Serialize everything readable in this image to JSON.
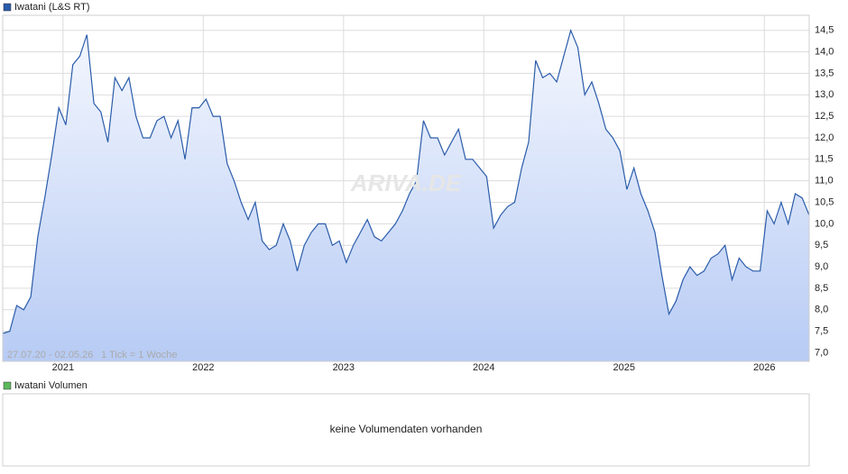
{
  "chart_data": {
    "type": "area",
    "title": "Iwatani (L&S RT)",
    "range_note": "27.07.20 - 02.05.26",
    "tick_note": "1 Tick = 1 Woche",
    "watermark": "ARIVA.DE",
    "volume_title": "Iwatani Volumen",
    "volume_note": "keine Volumendaten vorhanden",
    "grid": true,
    "color": "#2a5caa",
    "volume_color": "#5cb85c",
    "xlim": [
      2020.57,
      2026.32
    ],
    "xticks": [
      2021,
      2022,
      2023,
      2024,
      2025,
      2026
    ],
    "ylim": [
      6.8,
      14.85
    ],
    "yticks": [
      {
        "value": 7.0,
        "label": "7,0"
      },
      {
        "value": 7.5,
        "label": "7,5"
      },
      {
        "value": 8.0,
        "label": "8,0"
      },
      {
        "value": 8.5,
        "label": "8,5"
      },
      {
        "value": 9.0,
        "label": "9,0"
      },
      {
        "value": 9.5,
        "label": "9,5"
      },
      {
        "value": 10.0,
        "label": "10,0"
      },
      {
        "value": 10.5,
        "label": "10,5"
      },
      {
        "value": 11.0,
        "label": "11,0"
      },
      {
        "value": 11.5,
        "label": "11,5"
      },
      {
        "value": 12.0,
        "label": "12,0"
      },
      {
        "value": 12.5,
        "label": "12,5"
      },
      {
        "value": 13.0,
        "label": "13,0"
      },
      {
        "value": 13.5,
        "label": "13,5"
      },
      {
        "value": 14.0,
        "label": "14,0"
      },
      {
        "value": 14.5,
        "label": "14,5"
      }
    ],
    "x": [
      2020.57,
      2020.62,
      2020.67,
      2020.72,
      2020.77,
      2020.82,
      2020.87,
      2020.92,
      2020.97,
      2021.02,
      2021.07,
      2021.12,
      2021.17,
      2021.22,
      2021.27,
      2021.32,
      2021.37,
      2021.42,
      2021.47,
      2021.52,
      2021.57,
      2021.62,
      2021.67,
      2021.72,
      2021.77,
      2021.82,
      2021.87,
      2021.92,
      2021.97,
      2022.02,
      2022.07,
      2022.12,
      2022.17,
      2022.22,
      2022.27,
      2022.32,
      2022.37,
      2022.42,
      2022.47,
      2022.52,
      2022.57,
      2022.62,
      2022.67,
      2022.72,
      2022.77,
      2022.82,
      2022.87,
      2022.92,
      2022.97,
      2023.02,
      2023.07,
      2023.12,
      2023.17,
      2023.22,
      2023.27,
      2023.32,
      2023.37,
      2023.42,
      2023.47,
      2023.52,
      2023.57,
      2023.62,
      2023.67,
      2023.72,
      2023.77,
      2023.82,
      2023.87,
      2023.92,
      2023.97,
      2024.02,
      2024.07,
      2024.12,
      2024.17,
      2024.22,
      2024.27,
      2024.32,
      2024.37,
      2024.42,
      2024.47,
      2024.52,
      2024.57,
      2024.62,
      2024.67,
      2024.72,
      2024.77,
      2024.82,
      2024.87,
      2024.92,
      2024.97,
      2025.02,
      2025.07,
      2025.12,
      2025.17,
      2025.22,
      2025.27,
      2025.32,
      2025.37,
      2025.42,
      2025.47,
      2025.52,
      2025.57,
      2025.62,
      2025.67,
      2025.72,
      2025.77,
      2025.82,
      2025.87,
      2025.92,
      2025.97,
      2026.02,
      2026.07,
      2026.12,
      2026.17,
      2026.22,
      2026.27,
      2026.32
    ],
    "values": [
      7.45,
      7.5,
      8.1,
      8.0,
      8.3,
      9.7,
      10.6,
      11.6,
      12.7,
      12.3,
      13.7,
      13.9,
      14.4,
      12.8,
      12.6,
      11.9,
      13.4,
      13.1,
      13.4,
      12.5,
      12.0,
      12.0,
      12.4,
      12.5,
      12.0,
      12.4,
      11.5,
      12.7,
      12.7,
      12.9,
      12.5,
      12.5,
      11.4,
      11.0,
      10.5,
      10.1,
      10.5,
      9.6,
      9.4,
      9.5,
      10.0,
      9.6,
      8.9,
      9.5,
      9.8,
      10.0,
      10.0,
      9.5,
      9.6,
      9.1,
      9.5,
      9.8,
      10.1,
      9.7,
      9.6,
      9.8,
      10.0,
      10.3,
      10.7,
      11.0,
      12.4,
      12.0,
      12.0,
      11.6,
      11.9,
      12.2,
      11.5,
      11.5,
      11.3,
      11.1,
      9.9,
      10.2,
      10.4,
      10.5,
      11.3,
      11.9,
      13.8,
      13.4,
      13.5,
      13.3,
      13.9,
      14.5,
      14.1,
      13.0,
      13.3,
      12.8,
      12.2,
      12.0,
      11.7,
      10.8,
      11.3,
      10.7,
      10.3,
      9.8,
      8.8,
      7.9,
      8.2,
      8.7,
      9.0,
      8.8,
      8.9,
      9.2,
      9.3,
      9.5,
      8.7,
      9.2,
      9.0,
      8.9,
      8.9,
      10.3,
      10.0,
      10.5,
      10.0,
      10.7,
      10.6,
      10.2
    ]
  }
}
